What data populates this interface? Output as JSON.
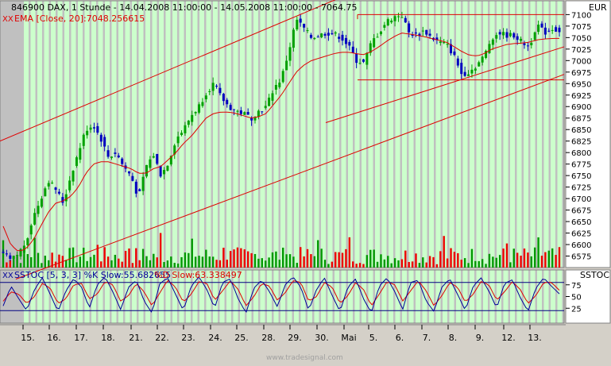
{
  "header": {
    "title": "846900  DAX, 1 Stunde - 14.04.2008 11:00:00 - 14.05.2008 11:00:00 - 7064.75",
    "ema_label": "EMA [Close, 20]:7048.256615",
    "currency": "EUR"
  },
  "stoch": {
    "label_k": "SSTOC [5, 3, 3] %K Slow:55.682655",
    "label_d": "%D Slow:63.338497",
    "panel_title": "SSTOC",
    "ticks": [
      25,
      50,
      75
    ],
    "levels": [
      20,
      80
    ],
    "ylim": [
      0,
      100
    ]
  },
  "footer": {
    "watermark": "www.tradesignal.com"
  },
  "colors": {
    "plot_bg": "#c0c0c0",
    "band": "#ccffcc",
    "up_candle": "#00a000",
    "down_candle": "#0000c0",
    "ema": "#e00000",
    "channel": "#e00000",
    "vol_up": "#009900",
    "vol_down": "#ee0000",
    "stoch_k": "#000099",
    "stoch_d": "#e00000",
    "level": "#000080"
  },
  "chart_data": {
    "type": "candlestick",
    "x_labels": [
      "15.",
      "16.",
      "17.",
      "18.",
      "21.",
      "22.",
      "23.",
      "24.",
      "25.",
      "28.",
      "29.",
      "30.",
      "Mai",
      "5.",
      "6.",
      "7.",
      "8.",
      "9.",
      "12.",
      "13."
    ],
    "y_ticks": [
      6575,
      6600,
      6625,
      6650,
      6675,
      6700,
      6725,
      6750,
      6775,
      6800,
      6825,
      6850,
      6875,
      6900,
      6925,
      6950,
      6975,
      7000,
      7025,
      7050,
      7075,
      7100
    ],
    "ylim": [
      6550,
      7130
    ],
    "close_path": [
      6580,
      6565,
      6580,
      6605,
      6660,
      6700,
      6740,
      6720,
      6690,
      6750,
      6800,
      6850,
      6860,
      6830,
      6790,
      6800,
      6770,
      6750,
      6700,
      6770,
      6795,
      6750,
      6780,
      6830,
      6850,
      6880,
      6900,
      6930,
      6950,
      6920,
      6900,
      6890,
      6885,
      6875,
      6890,
      6900,
      6940,
      6960,
      7020,
      7090,
      7070,
      7050,
      7055,
      7060,
      7058,
      7050,
      7030,
      7000,
      6995,
      7040,
      7060,
      7085,
      7095,
      7100,
      7060,
      7055,
      7065,
      7050,
      7040,
      7035,
      7010,
      6970,
      6975,
      6990,
      7010,
      7050,
      7060,
      7055,
      7055,
      7040,
      7030,
      7080,
      7060,
      7070,
      7064.75
    ],
    "ema_path": [
      6640,
      6600,
      6585,
      6590,
      6610,
      6640,
      6670,
      6690,
      6695,
      6705,
      6725,
      6755,
      6775,
      6780,
      6780,
      6775,
      6770,
      6765,
      6755,
      6755,
      6765,
      6770,
      6785,
      6800,
      6820,
      6835,
      6855,
      6875,
      6885,
      6888,
      6888,
      6885,
      6880,
      6875,
      6878,
      6885,
      6905,
      6925,
      6950,
      6975,
      6990,
      7000,
      7005,
      7010,
      7015,
      7018,
      7018,
      7015,
      7013,
      7020,
      7030,
      7042,
      7052,
      7060,
      7058,
      7055,
      7052,
      7048,
      7044,
      7040,
      7030,
      7020,
      7012,
      7010,
      7015,
      7025,
      7030,
      7035,
      7037,
      7038,
      7040,
      7045,
      7047,
      7048,
      7048.26
    ],
    "stoch_k_path": [
      30,
      72,
      45,
      20,
      65,
      90,
      55,
      18,
      62,
      88,
      70,
      25,
      75,
      92,
      60,
      22,
      70,
      85,
      40,
      15,
      78,
      90,
      55,
      20,
      72,
      92,
      65,
      25,
      80,
      88,
      45,
      15,
      68,
      85,
      60,
      28,
      75,
      92,
      70,
      20,
      65,
      90,
      52,
      18,
      70,
      88,
      45,
      15,
      72,
      90,
      60,
      22,
      80,
      85,
      40,
      18,
      70,
      88,
      55,
      20,
      72,
      90,
      62,
      25,
      78,
      86,
      48,
      18,
      68,
      90,
      72,
      55.68
    ],
    "stoch_d_path": [
      40,
      60,
      55,
      35,
      50,
      78,
      68,
      35,
      45,
      75,
      78,
      45,
      55,
      82,
      75,
      40,
      52,
      78,
      60,
      30,
      58,
      85,
      70,
      38,
      55,
      82,
      78,
      42,
      62,
      84,
      65,
      30,
      50,
      78,
      72,
      42,
      58,
      84,
      80,
      40,
      50,
      80,
      70,
      35,
      52,
      80,
      65,
      30,
      55,
      82,
      75,
      40,
      62,
      84,
      62,
      30,
      52,
      80,
      70,
      38,
      55,
      82,
      75,
      42,
      60,
      82,
      65,
      35,
      52,
      80,
      80,
      63.34
    ]
  }
}
